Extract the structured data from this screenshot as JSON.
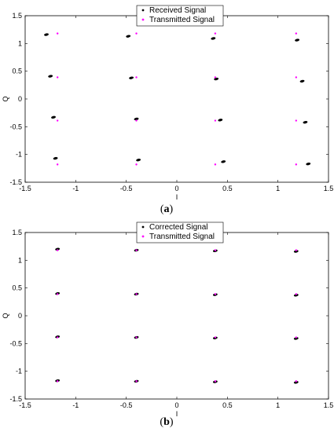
{
  "chart_data": [
    {
      "panel": "(a)",
      "type": "scatter",
      "title": "",
      "xlabel": "I",
      "ylabel": "Q",
      "xlim": [
        -1.5,
        1.5
      ],
      "ylim": [
        -1.5,
        1.5
      ],
      "xticks": [
        "-1.5",
        "-1",
        "-0.5",
        "0",
        "0.5",
        "1",
        "1.5"
      ],
      "yticks": [
        "-1.5",
        "-1",
        "-0.5",
        "0",
        "0.5",
        "1",
        "1.5"
      ],
      "grid": false,
      "legend_position": "top-center",
      "series": [
        {
          "name": "Received Signal",
          "color": "#000000",
          "marker": "cluster",
          "points": [
            [
              -1.29,
              1.16
            ],
            [
              -0.48,
              1.13
            ],
            [
              0.36,
              1.09
            ],
            [
              1.19,
              1.06
            ],
            [
              -1.25,
              0.41
            ],
            [
              -0.45,
              0.38
            ],
            [
              0.39,
              0.36
            ],
            [
              1.24,
              0.32
            ],
            [
              -1.22,
              -0.33
            ],
            [
              -0.4,
              -0.36
            ],
            [
              0.43,
              -0.38
            ],
            [
              1.27,
              -0.42
            ],
            [
              -1.2,
              -1.07
            ],
            [
              -0.38,
              -1.1
            ],
            [
              0.46,
              -1.13
            ],
            [
              1.3,
              -1.17
            ]
          ]
        },
        {
          "name": "Transmitted Signal",
          "color": "#ff00ff",
          "marker": "dot",
          "points": [
            [
              -1.18,
              1.18
            ],
            [
              -0.4,
              1.18
            ],
            [
              0.38,
              1.18
            ],
            [
              1.18,
              1.18
            ],
            [
              -1.18,
              0.39
            ],
            [
              -0.4,
              0.39
            ],
            [
              0.38,
              0.39
            ],
            [
              1.18,
              0.39
            ],
            [
              -1.18,
              -0.39
            ],
            [
              -0.4,
              -0.39
            ],
            [
              0.38,
              -0.39
            ],
            [
              1.18,
              -0.39
            ],
            [
              -1.18,
              -1.18
            ],
            [
              -0.4,
              -1.18
            ],
            [
              0.38,
              -1.18
            ],
            [
              1.18,
              -1.18
            ]
          ]
        }
      ]
    },
    {
      "panel": "(b)",
      "type": "scatter",
      "title": "",
      "xlabel": "I",
      "ylabel": "Q",
      "xlim": [
        -1.5,
        1.5
      ],
      "ylim": [
        -1.5,
        1.5
      ],
      "xticks": [
        "-1.5",
        "-1",
        "-0.5",
        "0",
        "0.5",
        "1",
        "1.5"
      ],
      "yticks": [
        "-1.5",
        "-1",
        "-0.5",
        "0",
        "0.5",
        "1",
        "1.5"
      ],
      "grid": false,
      "legend_position": "top-center",
      "series": [
        {
          "name": "Corrected Signal",
          "color": "#000000",
          "marker": "cluster",
          "points": [
            [
              -1.18,
              1.2
            ],
            [
              -0.4,
              1.18
            ],
            [
              0.38,
              1.17
            ],
            [
              1.18,
              1.16
            ],
            [
              -1.18,
              0.4
            ],
            [
              -0.4,
              0.39
            ],
            [
              0.38,
              0.38
            ],
            [
              1.18,
              0.37
            ],
            [
              -1.18,
              -0.38
            ],
            [
              -0.4,
              -0.39
            ],
            [
              0.38,
              -0.4
            ],
            [
              1.18,
              -0.41
            ],
            [
              -1.18,
              -1.17
            ],
            [
              -0.4,
              -1.18
            ],
            [
              0.38,
              -1.19
            ],
            [
              1.18,
              -1.2
            ]
          ]
        },
        {
          "name": "Transmitted Signal",
          "color": "#ff00ff",
          "marker": "dot",
          "points": [
            [
              -1.18,
              1.18
            ],
            [
              -0.4,
              1.18
            ],
            [
              0.38,
              1.18
            ],
            [
              1.18,
              1.18
            ],
            [
              -1.18,
              0.39
            ],
            [
              -0.4,
              0.39
            ],
            [
              0.38,
              0.39
            ],
            [
              1.18,
              0.39
            ],
            [
              -1.18,
              -0.39
            ],
            [
              -0.4,
              -0.39
            ],
            [
              0.38,
              -0.39
            ],
            [
              1.18,
              -0.39
            ],
            [
              -1.18,
              -1.18
            ],
            [
              -0.4,
              -1.18
            ],
            [
              0.38,
              -1.18
            ],
            [
              1.18,
              -1.18
            ]
          ]
        }
      ]
    }
  ]
}
